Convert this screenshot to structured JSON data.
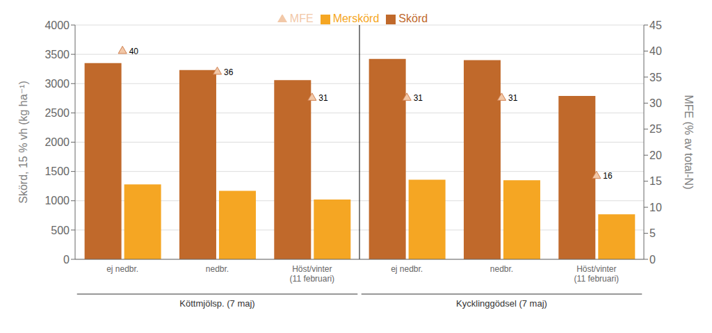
{
  "chart_data": {
    "type": "bar",
    "categories": [
      "ej nedbr.",
      "nedbr.",
      "Höst/vinter\n(11 februari)",
      "ej nedbr.",
      "nedbr.",
      "Höst/vinter\n(11 februari)"
    ],
    "group_labels": [
      "Köttmjölsp. (7 maj)",
      "Kycklinggödsel (7 maj)"
    ],
    "series": [
      {
        "name": "Skörd",
        "color": "#c0692b",
        "values": [
          3350,
          3230,
          3060,
          3420,
          3400,
          2790
        ]
      },
      {
        "name": "Merskörd",
        "color": "#f5a623",
        "values": [
          1280,
          1170,
          1020,
          1360,
          1350,
          770
        ]
      },
      {
        "name": "MFE",
        "type": "scatter",
        "marker": "triangle",
        "color": "#f2c8a8",
        "axis": "y2",
        "data_labels": true,
        "values": [
          40,
          36,
          31,
          31,
          31,
          16
        ]
      }
    ],
    "ylabel": "Skörd, 15 % vh (kg ha⁻¹)",
    "y2label": "MFE (% av total-N)",
    "ylim": [
      0,
      4000
    ],
    "yticks": [
      0,
      500,
      1000,
      1500,
      2000,
      2500,
      3000,
      3500,
      4000
    ],
    "y2lim": [
      0,
      45
    ],
    "y2ticks": [
      0,
      5,
      10,
      15,
      20,
      25,
      30,
      35,
      40,
      45
    ],
    "grid": true,
    "legend": "top"
  }
}
